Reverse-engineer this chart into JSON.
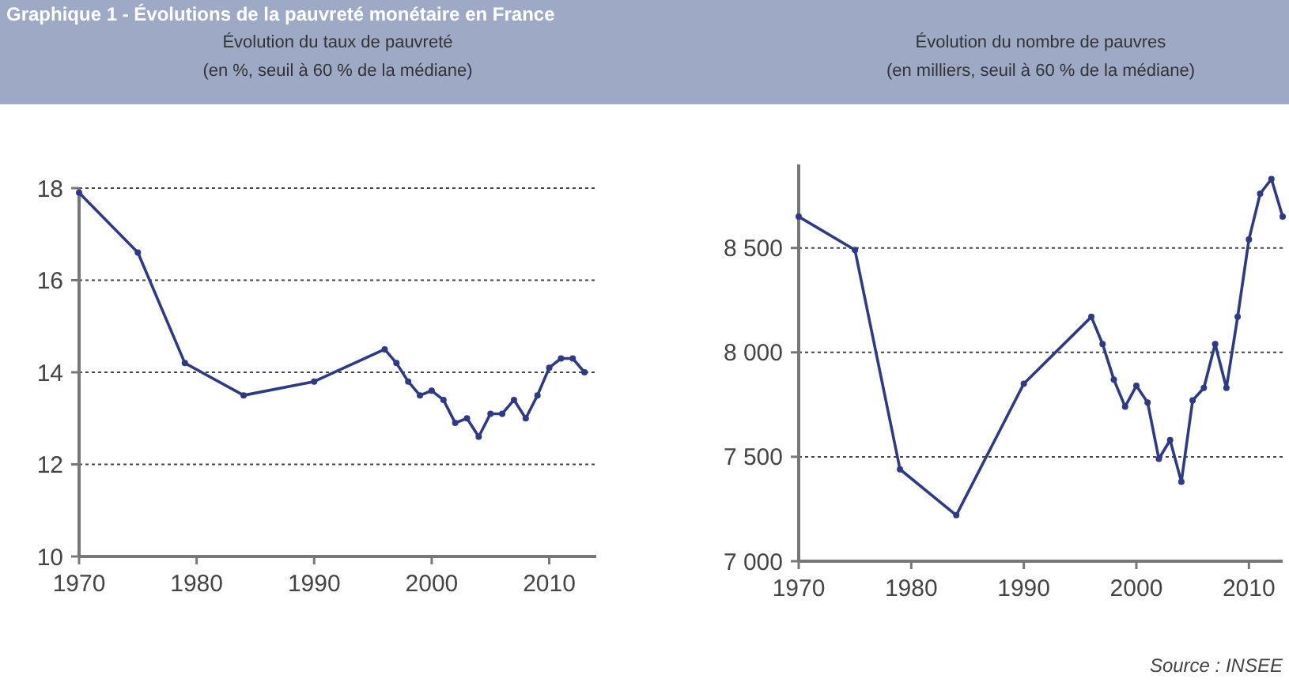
{
  "chart_data": [
    {
      "type": "line",
      "title": "Évolution du taux de pauvreté",
      "subtitle": "(en %, seuil à 60 % de la médiane)",
      "annotations": [
        "Graphique 1 - Évolutions de la pauvreté monétaire en France"
      ],
      "x": [
        1970,
        1975,
        1979,
        1984,
        1990,
        1996,
        1997,
        1998,
        1999,
        2000,
        2001,
        2002,
        2003,
        2004,
        2005,
        2006,
        2007,
        2008,
        2009,
        2010,
        2011,
        2012,
        2013
      ],
      "series": [
        {
          "color": "#2e3a87",
          "values": [
            17.9,
            16.6,
            14.2,
            13.5,
            13.8,
            14.5,
            14.2,
            13.8,
            13.5,
            13.6,
            13.4,
            12.9,
            13.0,
            12.6,
            13.1,
            13.1,
            13.4,
            13.0,
            13.5,
            14.1,
            14.3,
            14.3,
            14.0
          ]
        }
      ],
      "xlim": [
        1970,
        2014
      ],
      "xticks": [
        1970,
        1980,
        1990,
        2000,
        2010
      ],
      "ylim": [
        10,
        18
      ],
      "yticks": [
        10,
        12,
        14,
        16,
        18
      ],
      "grid": "y",
      "marker": "circle",
      "line_style": "solid"
    },
    {
      "type": "line",
      "title": "Évolution du nombre de pauvres",
      "subtitle": "(en milliers, seuil à 60 % de la médiane)",
      "annotations": [
        "Source : INSEE"
      ],
      "x": [
        1970,
        1975,
        1979,
        1984,
        1990,
        1996,
        1997,
        1998,
        1999,
        2000,
        2001,
        2002,
        2003,
        2004,
        2005,
        2006,
        2007,
        2008,
        2009,
        2010,
        2011,
        2012,
        2013
      ],
      "series": [
        {
          "color": "#2e3a87",
          "values": [
            8650,
            8490,
            7440,
            7220,
            7850,
            8170,
            8040,
            7870,
            7740,
            7840,
            7760,
            7490,
            7580,
            7380,
            7770,
            7830,
            8040,
            7830,
            8170,
            8540,
            8760,
            8830,
            8650
          ]
        }
      ],
      "xlim": [
        1970,
        2013
      ],
      "xticks": [
        1970,
        1980,
        1990,
        2000,
        2010
      ],
      "ylim": [
        7000,
        8900
      ],
      "yticks": [
        {
          "value": 7000,
          "label": "7 000"
        },
        {
          "value": 7500,
          "label": "7 500"
        },
        {
          "value": 8000,
          "label": "8 000"
        },
        {
          "value": 8500,
          "label": "8 500"
        }
      ],
      "grid": "y",
      "marker": "circle",
      "line_style": "solid"
    }
  ]
}
